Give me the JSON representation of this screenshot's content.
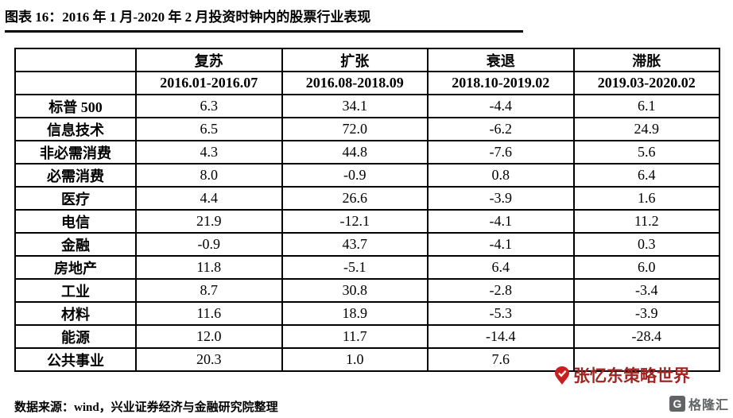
{
  "header": {
    "title": "图表 16：2016 年 1 月-2020 年 2 月投资时钟内的股票行业表现"
  },
  "table": {
    "corner_label": "",
    "phases": [
      "复苏",
      "扩张",
      "衰退",
      "滞胀"
    ],
    "periods": [
      "2016.01-2016.07",
      "2016.08-2018.09",
      "2018.10-2019.02",
      "2019.03-2020.02"
    ],
    "rows": [
      {
        "label": "标普 500",
        "values": [
          "6.3",
          "34.1",
          "-4.4",
          "6.1"
        ],
        "highlight": [
          false,
          false,
          false,
          false
        ]
      },
      {
        "label": "信息技术",
        "values": [
          "6.5",
          "72.0",
          "-6.2",
          "24.9"
        ],
        "highlight": [
          true,
          true,
          false,
          true
        ]
      },
      {
        "label": "非必需消费",
        "values": [
          "4.3",
          "44.8",
          "-7.6",
          "5.6"
        ],
        "highlight": [
          false,
          true,
          false,
          false
        ]
      },
      {
        "label": "必需消费",
        "values": [
          "8.0",
          "-0.9",
          "0.8",
          "6.4"
        ],
        "highlight": [
          true,
          false,
          true,
          true
        ]
      },
      {
        "label": "医疗",
        "values": [
          "4.4",
          "26.6",
          "-3.9",
          "1.6"
        ],
        "highlight": [
          false,
          false,
          true,
          false
        ]
      },
      {
        "label": "电信",
        "values": [
          "21.9",
          "-12.1",
          "-4.1",
          "11.2"
        ],
        "highlight": [
          true,
          false,
          true,
          true
        ]
      },
      {
        "label": "金融",
        "values": [
          "-0.9",
          "43.7",
          "-4.1",
          "0.3"
        ],
        "highlight": [
          false,
          true,
          true,
          false
        ]
      },
      {
        "label": "房地产",
        "values": [
          "11.8",
          "-5.1",
          "6.4",
          "6.0"
        ],
        "highlight": [
          true,
          false,
          true,
          false
        ]
      },
      {
        "label": "工业",
        "values": [
          "8.7",
          "30.8",
          "-2.8",
          "-3.4"
        ],
        "highlight": [
          true,
          false,
          true,
          false
        ]
      },
      {
        "label": "材料",
        "values": [
          "11.6",
          "18.9",
          "-5.3",
          "-3.9"
        ],
        "highlight": [
          true,
          false,
          false,
          false
        ]
      },
      {
        "label": "能源",
        "values": [
          "12.0",
          "11.7",
          "-14.4",
          "-28.4"
        ],
        "highlight": [
          true,
          false,
          false,
          false
        ]
      },
      {
        "label": "公共事业",
        "values": [
          "20.3",
          "1.0",
          "7.6",
          ""
        ],
        "highlight": [
          true,
          false,
          true,
          true
        ]
      }
    ]
  },
  "footer": {
    "source": "数据来源：wind，兴业证券经济与金融研究院整理"
  },
  "watermarks": {
    "strategy_text": "张忆东策略世界",
    "brand_text": "格隆汇",
    "brand_initial": "G"
  },
  "colors": {
    "highlight_bg": "#F8CACA",
    "highlight_text": "#C00000",
    "watermark_red": "#A02420",
    "brand_gray": "#55565A"
  }
}
